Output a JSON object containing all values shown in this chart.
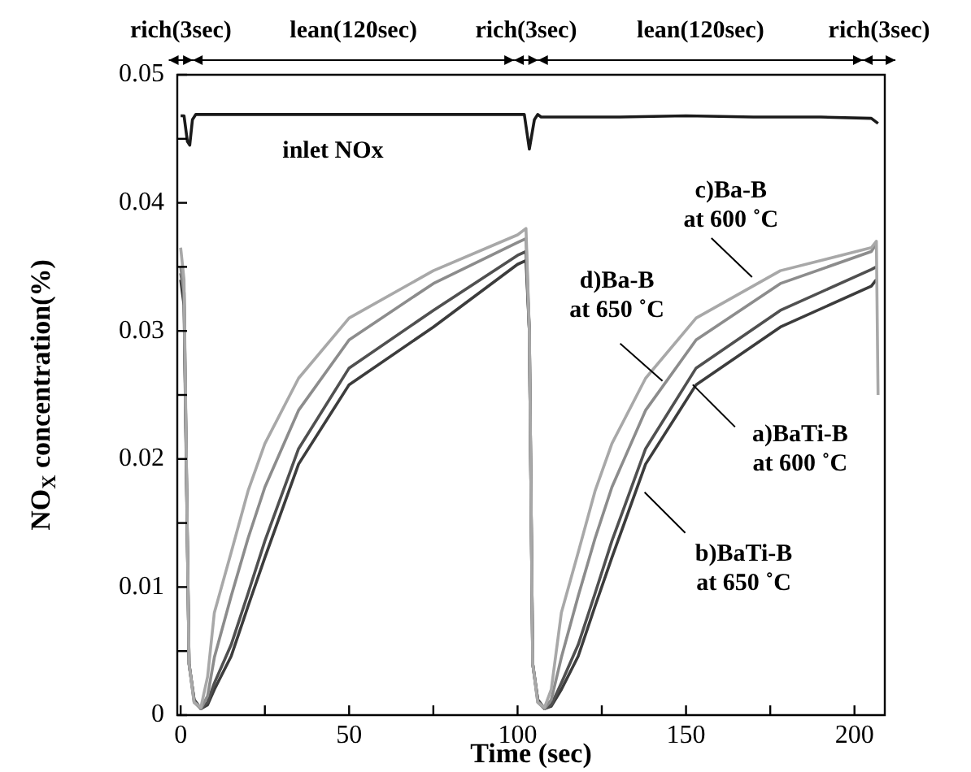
{
  "chart_data": {
    "type": "line",
    "xlabel": "Time (sec)",
    "ylabel": "NO$_{X}$ concentration(%)",
    "xlim": [
      -1,
      209
    ],
    "xticks": [
      0,
      {
        "value": 25,
        "label": null
      },
      50,
      {
        "value": 75,
        "label": null
      },
      100,
      {
        "value": 125,
        "label": null
      },
      150,
      {
        "value": 175,
        "label": null
      },
      200
    ],
    "ylim": [
      0,
      0.05
    ],
    "yticks": [
      0,
      {
        "value": 0.005,
        "label": null
      },
      0.01,
      {
        "value": 0.015,
        "label": null
      },
      0.02,
      {
        "value": 0.025,
        "label": null
      },
      0.03,
      {
        "value": 0.035,
        "label": null
      },
      0.04,
      {
        "value": 0.045,
        "label": null
      },
      0.05
    ],
    "marker": "none",
    "legend": false,
    "annotations": [
      "rich(3sec)",
      "lean(120sec)",
      "rich(3sec)",
      "lean(120sec)",
      "rich(3sec)",
      {
        "text": "c)Ba-B\nat 600 ˚C",
        "x": 169.6,
        "y": 0.0342
      },
      {
        "text": "d)Ba-B\nat 650 ˚C",
        "x": 143,
        "y": 0.0261
      },
      {
        "text": "a)BaTi-B\nat 600 ˚C",
        "x": 152,
        "y": 0.0258
      },
      {
        "text": "b)BaTi-B\nat 650 ˚C",
        "x": 137.7,
        "y": 0.0174
      }
    ],
    "series": [
      {
        "name": "inlet NOx",
        "color": "#1a1a1a",
        "x": [
          0,
          1,
          2,
          2.7,
          3.5,
          4.5,
          102,
          103.5,
          105,
          106,
          107,
          130,
          150,
          170,
          190,
          205,
          207
        ],
        "values": [
          0.0468,
          0.0468,
          0.0448,
          0.0445,
          0.0465,
          0.0469,
          0.0469,
          0.0442,
          0.0465,
          0.0469,
          0.0467,
          0.0467,
          0.0468,
          0.0467,
          0.0467,
          0.0466,
          0.0462
        ]
      },
      {
        "color": "#a8a8a8",
        "x": [
          0,
          1,
          2.5,
          4,
          6,
          8,
          10,
          15,
          20,
          25,
          35,
          50,
          75,
          100,
          102.5,
          103.5,
          104.5,
          106,
          108,
          110,
          113,
          118,
          123,
          128,
          138,
          153,
          178,
          205,
          206.5,
          207
        ],
        "values": [
          0.0365,
          0.034,
          0.004,
          0.001,
          0.0006,
          0.003,
          0.008,
          0.0127,
          0.0175,
          0.0212,
          0.0263,
          0.031,
          0.0347,
          0.0375,
          0.038,
          0.03,
          0.004,
          0.001,
          0.0006,
          0.002,
          0.008,
          0.0127,
          0.0175,
          0.0212,
          0.0263,
          0.031,
          0.0347,
          0.0365,
          0.037,
          0.025
        ]
      },
      {
        "color": "#8c8c8c",
        "x": [
          0,
          1,
          2.5,
          4,
          6,
          8,
          10,
          15,
          20,
          25,
          35,
          50,
          75,
          100,
          102.5,
          103.5,
          104.5,
          106,
          108,
          110,
          113,
          118,
          123,
          128,
          138,
          153,
          178,
          205,
          206.5
        ],
        "values": [
          0.035,
          0.033,
          0.004,
          0.001,
          0.0005,
          0.0015,
          0.0045,
          0.0093,
          0.0138,
          0.0178,
          0.0238,
          0.0293,
          0.0337,
          0.0369,
          0.0372,
          0.03,
          0.004,
          0.001,
          0.0005,
          0.0012,
          0.0045,
          0.0093,
          0.0138,
          0.0178,
          0.0238,
          0.0293,
          0.0337,
          0.0362,
          0.0368
        ]
      },
      {
        "color": "#505050",
        "x": [
          0,
          1,
          2.5,
          4,
          6,
          8,
          10,
          15,
          20,
          25,
          35,
          50,
          75,
          100,
          102.5,
          103.5,
          104.5,
          106,
          108,
          110,
          113,
          118,
          123,
          128,
          138,
          153,
          178,
          205,
          206.5
        ],
        "values": [
          0.0345,
          0.033,
          0.004,
          0.0012,
          0.0005,
          0.001,
          0.0025,
          0.0055,
          0.0095,
          0.0136,
          0.0208,
          0.0271,
          0.0316,
          0.0359,
          0.0362,
          0.03,
          0.004,
          0.0012,
          0.0005,
          0.0008,
          0.0025,
          0.0055,
          0.0095,
          0.0136,
          0.0208,
          0.0271,
          0.0316,
          0.0348,
          0.035
        ]
      },
      {
        "color": "#3c3c3c",
        "x": [
          0,
          1,
          2.5,
          4,
          6,
          8,
          10,
          15,
          20,
          25,
          35,
          50,
          75,
          100,
          102.5,
          103.5,
          104.5,
          106,
          108,
          110,
          113,
          118,
          123,
          128,
          138,
          153,
          178,
          205,
          206.5
        ],
        "values": [
          0.034,
          0.032,
          0.004,
          0.0012,
          0.0005,
          0.0008,
          0.002,
          0.0046,
          0.0085,
          0.0123,
          0.0196,
          0.0258,
          0.0303,
          0.0352,
          0.0355,
          0.03,
          0.004,
          0.0012,
          0.0005,
          0.0007,
          0.002,
          0.0046,
          0.0085,
          0.0123,
          0.0196,
          0.0258,
          0.0303,
          0.0335,
          0.034
        ]
      }
    ]
  }
}
